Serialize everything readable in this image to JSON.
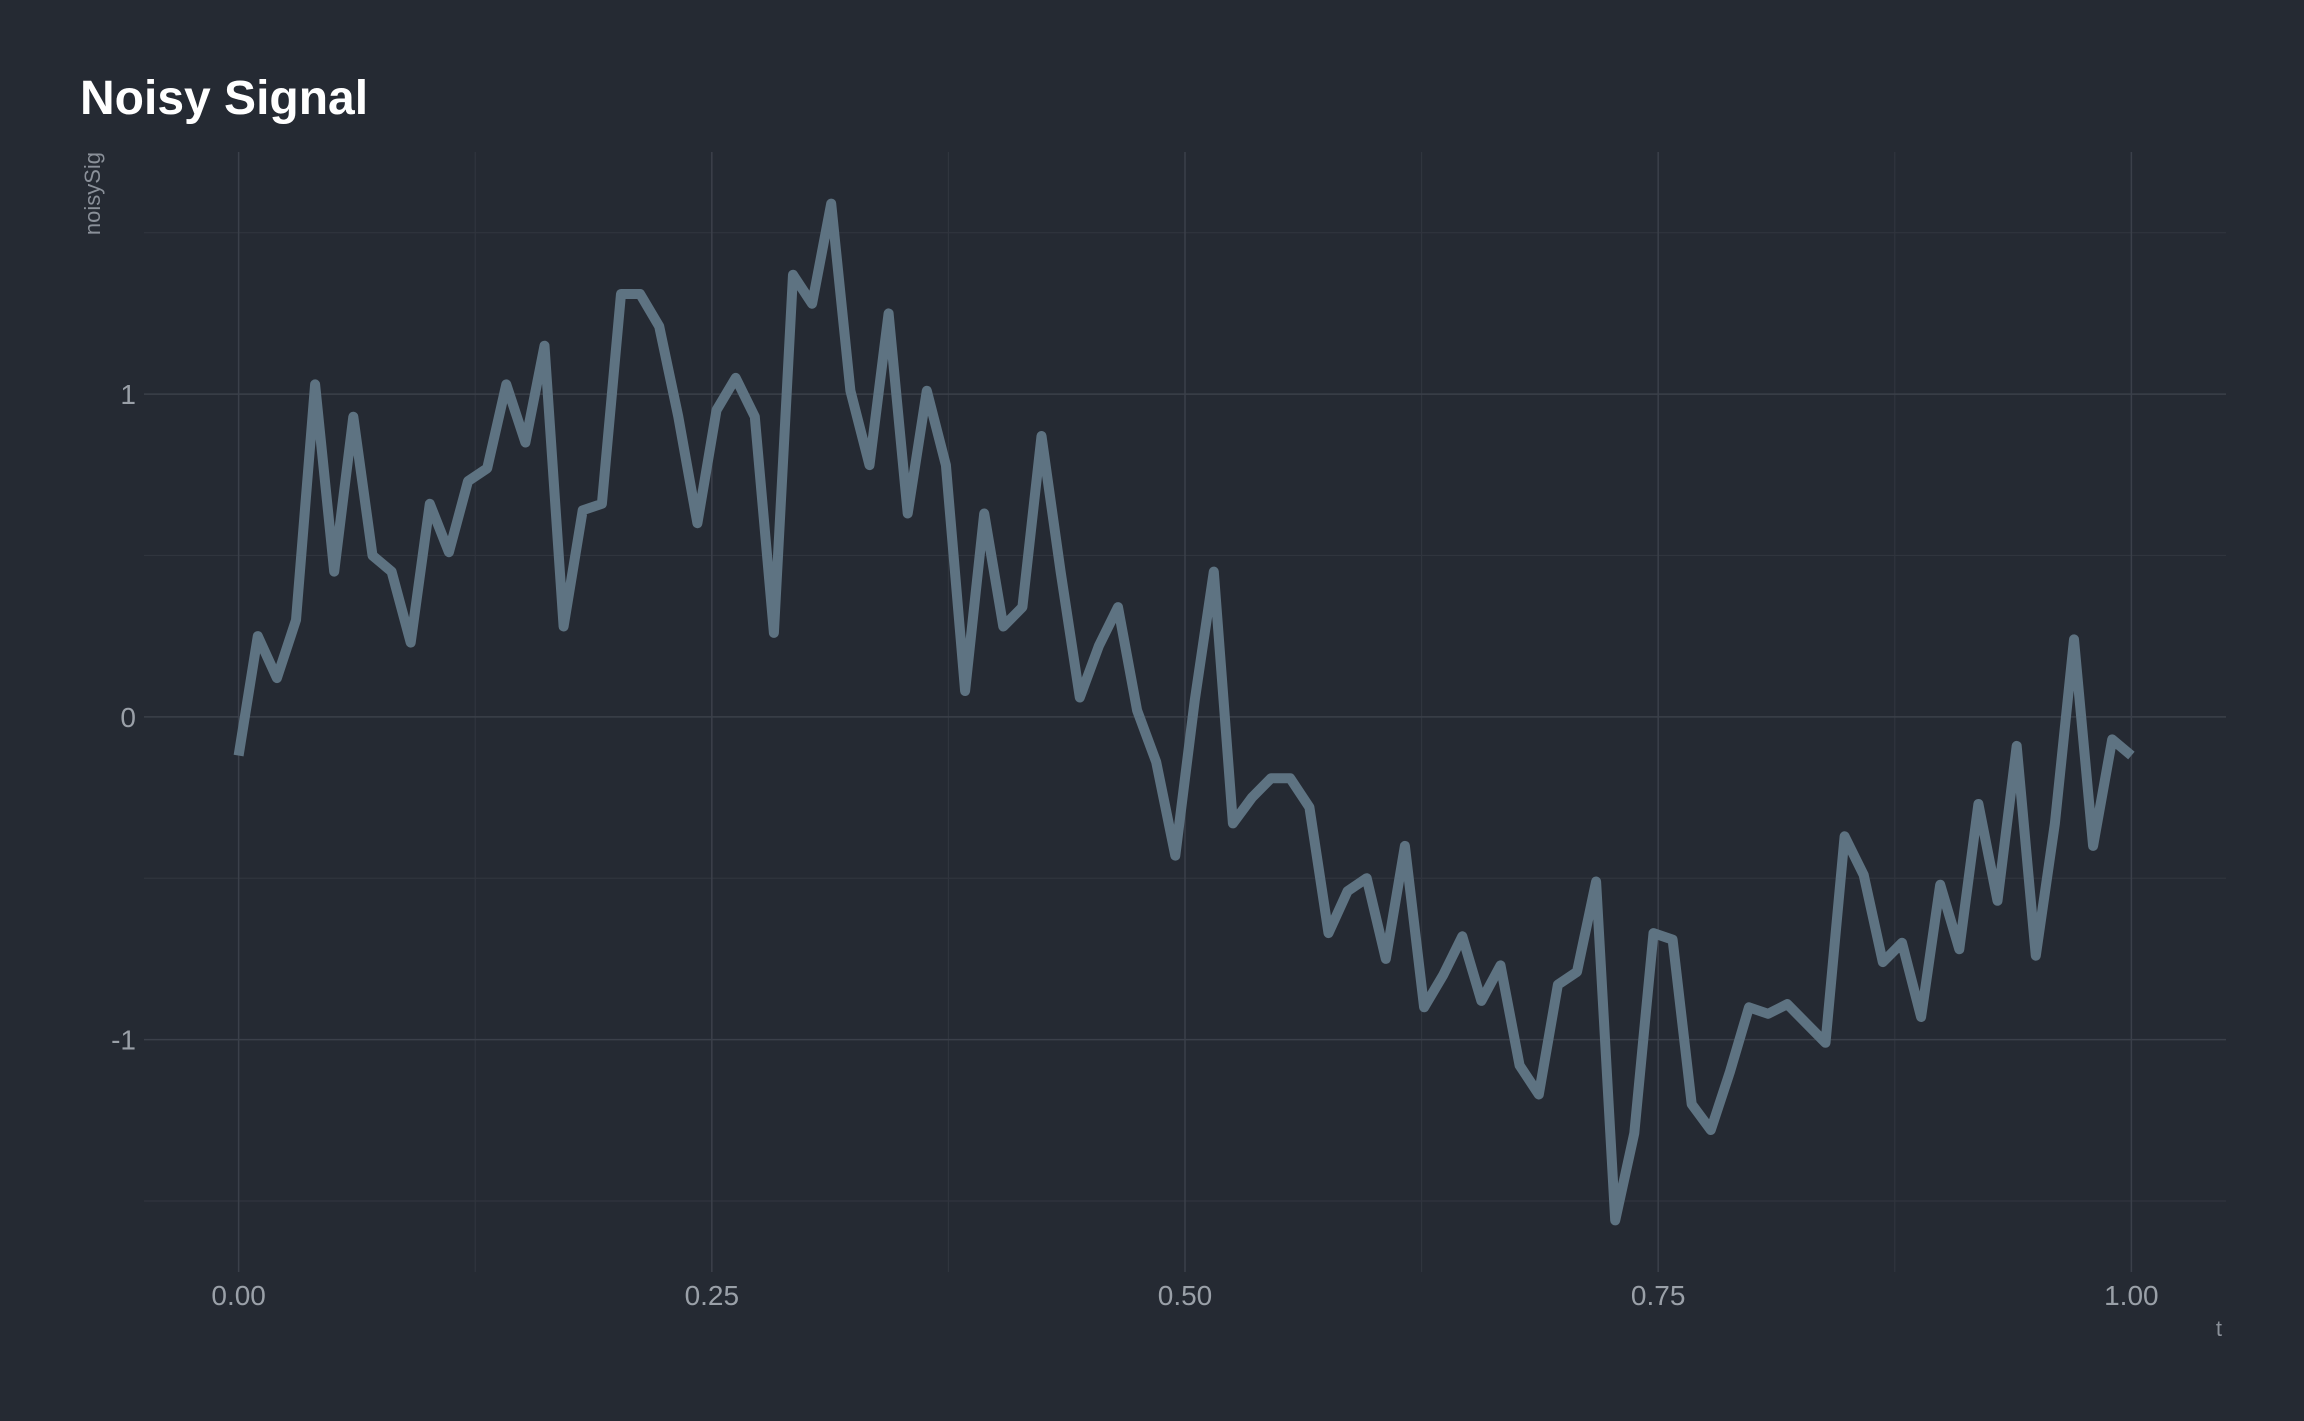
{
  "chart_data": {
    "type": "line",
    "title": "Noisy Signal",
    "xlabel": "t",
    "ylabel": "noisySig",
    "xlim": [
      -0.05,
      1.05
    ],
    "ylim": [
      -1.72,
      1.75
    ],
    "x_ticks": [
      0,
      0.25,
      0.5,
      0.75,
      1
    ],
    "x_tick_labels": [
      "0.00",
      "0.25",
      "0.50",
      "0.75",
      "1.00"
    ],
    "y_ticks": [
      -1,
      0,
      1
    ],
    "y_tick_labels": [
      "-1",
      "0",
      "1"
    ],
    "x_minor_ticks": [
      0.125,
      0.375,
      0.625,
      0.875
    ],
    "y_minor_ticks": [
      -1.5,
      -0.5,
      0.5,
      1.5
    ],
    "grid": true,
    "series": [
      {
        "color": "#5e7382",
        "x": [
          0,
          0.0101,
          0.0202,
          0.0303,
          0.0404,
          0.0505,
          0.0606,
          0.0707,
          0.0808,
          0.0909,
          0.101,
          0.1111,
          0.1212,
          0.1313,
          0.1414,
          0.1515,
          0.1616,
          0.1717,
          0.1818,
          0.1919,
          0.202,
          0.2121,
          0.2222,
          0.2323,
          0.2424,
          0.2525,
          0.2626,
          0.2727,
          0.2828,
          0.2929,
          0.303,
          0.3131,
          0.3232,
          0.3333,
          0.3434,
          0.3535,
          0.3636,
          0.3737,
          0.3838,
          0.3939,
          0.404,
          0.4141,
          0.4242,
          0.4343,
          0.4444,
          0.4545,
          0.4646,
          0.4747,
          0.4848,
          0.4949,
          0.5051,
          0.5152,
          0.5253,
          0.5354,
          0.5455,
          0.5556,
          0.5657,
          0.5758,
          0.5859,
          0.596,
          0.6061,
          0.6162,
          0.6263,
          0.6364,
          0.6465,
          0.6566,
          0.6667,
          0.6768,
          0.6869,
          0.697,
          0.7071,
          0.7172,
          0.7273,
          0.7374,
          0.7475,
          0.7576,
          0.7677,
          0.7778,
          0.7879,
          0.798,
          0.8081,
          0.8182,
          0.8283,
          0.8384,
          0.8485,
          0.8586,
          0.8687,
          0.8788,
          0.8889,
          0.899,
          0.9091,
          0.9192,
          0.9293,
          0.9394,
          0.9495,
          0.9596,
          0.9697,
          0.9798,
          0.9899,
          1.0
        ],
        "y": [
          -0.12,
          0.25,
          0.12,
          0.3,
          1.03,
          0.45,
          0.93,
          0.5,
          0.45,
          0.23,
          0.66,
          0.51,
          0.73,
          0.77,
          1.03,
          0.85,
          1.15,
          0.28,
          0.64,
          0.66,
          1.31,
          1.31,
          1.21,
          0.93,
          0.6,
          0.95,
          1.05,
          0.93,
          0.26,
          1.37,
          1.28,
          1.59,
          1.01,
          0.78,
          1.25,
          0.63,
          1.01,
          0.78,
          0.08,
          0.63,
          0.28,
          0.34,
          0.87,
          0.45,
          0.06,
          0.22,
          0.34,
          0.02,
          -0.14,
          -0.43,
          0.05,
          0.45,
          -0.33,
          -0.25,
          -0.19,
          -0.19,
          -0.28,
          -0.67,
          -0.54,
          -0.5,
          -0.75,
          -0.4,
          -0.9,
          -0.8,
          -0.68,
          -0.88,
          -0.77,
          -1.08,
          -1.17,
          -0.83,
          -0.79,
          -0.51,
          -1.56,
          -1.29,
          -0.67,
          -0.69,
          -1.2,
          -1.28,
          -1.1,
          -0.9,
          -0.92,
          -0.89,
          -0.95,
          -1.01,
          -0.37,
          -0.49,
          -0.76,
          -0.7,
          -0.93,
          -0.52,
          -0.72,
          -0.27,
          -0.57,
          -0.09,
          -0.74,
          -0.33,
          0.24,
          -0.4,
          -0.07,
          -0.12
        ]
      }
    ]
  }
}
